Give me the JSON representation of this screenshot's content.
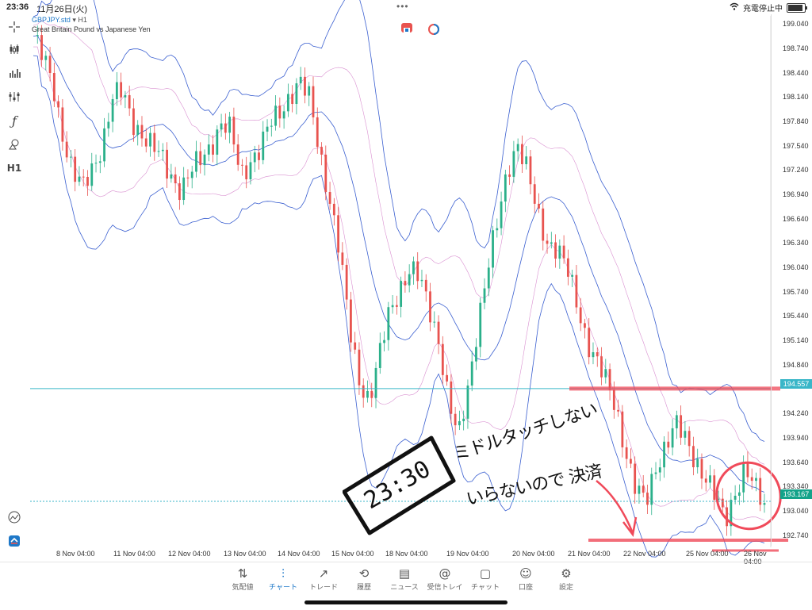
{
  "status_bar": {
    "time": "23:36",
    "date": "11月26日(火)",
    "dots": "•••",
    "battery_label": "充電停止中"
  },
  "symbol": {
    "name": "GBPJPY.std",
    "timeframe": "▾ H1",
    "description": "Great Britain Pound vs Japanese Yen"
  },
  "toolbar": {
    "items": [
      {
        "name": "crosshair",
        "glyph": "+"
      },
      {
        "name": "candles",
        "glyph": "⫶"
      },
      {
        "name": "bars",
        "glyph": "⩩"
      },
      {
        "name": "indicators",
        "glyph": "⫵"
      },
      {
        "name": "function",
        "glyph": "ƒ"
      },
      {
        "name": "objects",
        "glyph": "⟁"
      },
      {
        "name": "timeframe",
        "glyph": "H1"
      }
    ]
  },
  "price_axis": [
    "199.040",
    "198.740",
    "198.440",
    "198.140",
    "197.840",
    "197.540",
    "197.240",
    "196.940",
    "196.640",
    "196.340",
    "196.040",
    "195.740",
    "195.440",
    "195.140",
    "194.840",
    "194.240",
    "193.940",
    "193.640",
    "193.340",
    "193.040",
    "192.740"
  ],
  "price_tags": {
    "horizontal_line": "194.557",
    "current": "193.167"
  },
  "time_axis": [
    "8 Nov 04:00",
    "11 Nov 04:00",
    "12 Nov 04:00",
    "13 Nov 04:00",
    "14 Nov 04:00",
    "15 Nov 04:00",
    "18 Nov 04:00",
    "19 Nov 04:00",
    "20 Nov 04:00",
    "21 Nov 04:00",
    "22 Nov 04:00",
    "25 Nov 04:00",
    "26 Nov 04:00"
  ],
  "annotations": {
    "time_box": "23:30",
    "note_line1": "ミドルタッチしない",
    "note_line2": "いらないので 決済"
  },
  "tabs": [
    {
      "label": "気配値",
      "glyph": "⇅"
    },
    {
      "label": "チャート",
      "glyph": "⫶"
    },
    {
      "label": "トレード",
      "glyph": "↗"
    },
    {
      "label": "履歴",
      "glyph": "⟲"
    },
    {
      "label": "ニュース",
      "glyph": "▤"
    },
    {
      "label": "受信トレイ",
      "glyph": "@"
    },
    {
      "label": "チャット",
      "glyph": "▢"
    },
    {
      "label": "口座",
      "glyph": "☺"
    },
    {
      "label": "設定",
      "glyph": "⚙"
    }
  ],
  "colors": {
    "bull": "#2bb08a",
    "bear": "#e8534f",
    "band": "#3a5fd0",
    "mid": "#d98fd0",
    "hline": "#39b6c8",
    "marker": "#f04a5a"
  },
  "chart_data": {
    "type": "candlestick",
    "symbol": "GBPJPY.std",
    "timeframe": "H1",
    "ylim": [
      192.6,
      199.15
    ],
    "grid": false,
    "horizontal_lines": [
      194.557,
      193.167
    ],
    "x": [
      "8 Nov 04:00",
      "11 Nov 04:00",
      "12 Nov 04:00",
      "13 Nov 04:00",
      "14 Nov 04:00",
      "15 Nov 04:00",
      "18 Nov 04:00",
      "19 Nov 04:00",
      "20 Nov 04:00",
      "21 Nov 04:00",
      "22 Nov 04:00",
      "25 Nov 04:00",
      "26 Nov 04:00"
    ],
    "close_path": [
      198.9,
      198.6,
      198.3,
      197.7,
      197.2,
      197.0,
      197.3,
      197.6,
      198.1,
      198.2,
      197.9,
      197.7,
      197.5,
      197.4,
      197.2,
      197.0,
      197.2,
      197.4,
      197.6,
      197.8,
      197.7,
      197.2,
      197.4,
      197.5,
      197.8,
      198.0,
      198.2,
      198.3,
      198.1,
      197.5,
      196.9,
      196.2,
      195.3,
      194.7,
      194.4,
      194.9,
      195.5,
      195.8,
      196.0,
      195.9,
      195.6,
      195.2,
      194.4,
      193.9,
      194.6,
      195.4,
      196.0,
      196.6,
      197.3,
      197.6,
      197.2,
      196.7,
      196.4,
      196.3,
      196.0,
      195.6,
      195.2,
      194.9,
      194.6,
      194.3,
      193.8,
      193.3,
      193.1,
      193.6,
      193.9,
      194.1,
      193.9,
      193.7,
      193.5,
      193.2,
      192.9,
      193.3,
      193.6,
      193.3,
      193.1
    ]
  }
}
